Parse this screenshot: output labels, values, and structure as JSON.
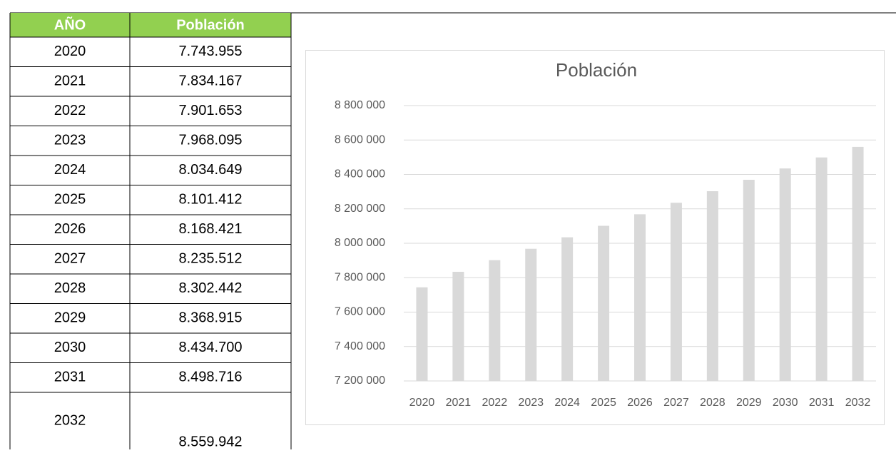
{
  "table": {
    "header": [
      "AÑO",
      "Población"
    ],
    "rows": [
      [
        "2020",
        "7.743.955"
      ],
      [
        "2021",
        "7.834.167"
      ],
      [
        "2022",
        "7.901.653"
      ],
      [
        "2023",
        "7.968.095"
      ],
      [
        "2024",
        "8.034.649"
      ],
      [
        "2025",
        "8.101.412"
      ],
      [
        "2026",
        "8.168.421"
      ],
      [
        "2027",
        "8.235.512"
      ],
      [
        "2028",
        "8.302.442"
      ],
      [
        "2029",
        "8.368.915"
      ],
      [
        "2030",
        "8.434.700"
      ],
      [
        "2031",
        "8.498.716"
      ],
      [
        "2032",
        "8.559.942"
      ]
    ]
  },
  "chart_data": {
    "type": "bar",
    "title": "Población",
    "categories": [
      "2020",
      "2021",
      "2022",
      "2023",
      "2024",
      "2025",
      "2026",
      "2027",
      "2028",
      "2029",
      "2030",
      "2031",
      "2032"
    ],
    "values": [
      7743955,
      7834167,
      7901653,
      7968095,
      8034649,
      8101412,
      8168421,
      8235512,
      8302442,
      8368915,
      8434700,
      8498716,
      8559942
    ],
    "color": "#d9d9d9",
    "ylim": [
      7200000,
      8800000
    ],
    "yticks": [
      {
        "value": 7200000,
        "label": "7 200 000"
      },
      {
        "value": 7400000,
        "label": "7 400 000"
      },
      {
        "value": 7600000,
        "label": "7 600 000"
      },
      {
        "value": 7800000,
        "label": "7 800 000"
      },
      {
        "value": 8000000,
        "label": "8 000 000"
      },
      {
        "value": 8200000,
        "label": "8 200 000"
      },
      {
        "value": 8400000,
        "label": "8 400 000"
      },
      {
        "value": 8600000,
        "label": "8 600 000"
      },
      {
        "value": 8800000,
        "label": "8 800 000"
      }
    ],
    "grid": true
  }
}
